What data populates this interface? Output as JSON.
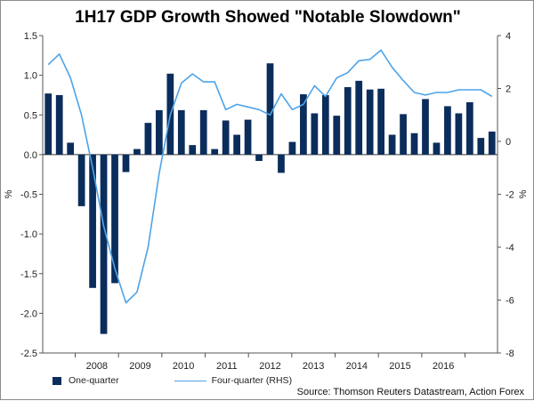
{
  "chart_data": {
    "type": "bar+line",
    "title": "1H17 GDP Growth Showed \"Notable Slowdown\"",
    "ylabel_left": "%",
    "ylabel_right": "%",
    "left_axis": {
      "ylim": [
        -2.5,
        1.5
      ],
      "ticks": [
        1.5,
        1.0,
        0.5,
        0.0,
        -0.5,
        -1.0,
        -1.5,
        -2.0,
        -2.5
      ],
      "tick_labels": [
        "1.5",
        "1.0",
        "0.5",
        "0.0",
        "-0.5",
        "-1.0",
        "-1.5",
        "-2.0",
        "-2.5"
      ]
    },
    "right_axis": {
      "ylim": [
        -8,
        4
      ],
      "ticks": [
        4,
        2,
        0,
        -2,
        -4,
        -6,
        -8
      ],
      "tick_labels": [
        "4",
        "2",
        "0",
        "-2",
        "-4",
        "-6",
        "-8"
      ]
    },
    "x_start": 2007.25,
    "x_end": 2017.75,
    "year_labels": [
      "2008",
      "2009",
      "2010",
      "2011",
      "2012",
      "2013",
      "2014",
      "2015",
      "2016"
    ],
    "series": [
      {
        "name": "One-quarter",
        "axis": "left",
        "kind": "bar",
        "values": [
          0.77,
          0.75,
          0.15,
          -0.65,
          -1.68,
          -2.26,
          -1.62,
          -0.22,
          0.07,
          0.4,
          0.56,
          1.02,
          0.56,
          0.12,
          0.56,
          0.07,
          0.43,
          0.25,
          0.44,
          -0.08,
          1.15,
          -0.23,
          0.16,
          0.76,
          0.52,
          0.75,
          0.49,
          0.85,
          0.93,
          0.82,
          0.83,
          0.25,
          0.51,
          0.27,
          0.7,
          0.15,
          0.61,
          0.52,
          0.66,
          0.21,
          0.29
        ]
      },
      {
        "name": "Four-quarter (RHS)",
        "axis": "right",
        "kind": "line",
        "values": [
          2.9,
          3.3,
          2.4,
          1.0,
          -1.0,
          -3.2,
          -4.8,
          -6.1,
          -5.7,
          -4.0,
          -1.2,
          1.0,
          2.2,
          2.55,
          2.25,
          2.25,
          1.2,
          1.4,
          1.3,
          1.2,
          1.0,
          1.8,
          1.2,
          1.4,
          2.1,
          1.7,
          2.4,
          2.6,
          3.05,
          3.1,
          3.45,
          2.8,
          2.3,
          1.85,
          1.75,
          1.85,
          1.85,
          1.95,
          1.95,
          1.95,
          1.7
        ]
      }
    ],
    "legend": [
      "One-quarter",
      "Four-quarter (RHS)"
    ],
    "legend_position": "bottom-left",
    "source": "Source: Thomson Reuters Datastream, Action Forex",
    "colors": {
      "bar": "#0b2d5b",
      "line": "#4ea3e8",
      "axis": "#555555",
      "zero_line": "#333333"
    }
  }
}
